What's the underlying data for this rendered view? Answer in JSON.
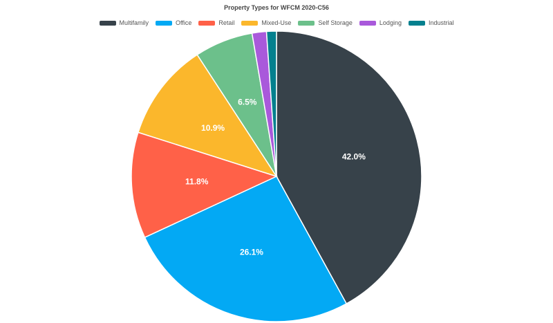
{
  "chart_data": {
    "type": "pie",
    "title": "Property Types for WFCM 2020-C56",
    "legend_position": "top",
    "slices": [
      {
        "name": "Multifamily",
        "value": 42.0,
        "label": "42.0%",
        "color": "#37424a"
      },
      {
        "name": "Office",
        "value": 26.1,
        "label": "26.1%",
        "color": "#03a9f4"
      },
      {
        "name": "Retail",
        "value": 11.8,
        "label": "11.8%",
        "color": "#ff6148"
      },
      {
        "name": "Mixed-Use",
        "value": 10.9,
        "label": "10.9%",
        "color": "#fbb72c"
      },
      {
        "name": "Self Storage",
        "value": 6.5,
        "label": "6.5%",
        "color": "#6cc08b"
      },
      {
        "name": "Lodging",
        "value": 1.6,
        "label": "",
        "color": "#a959db"
      },
      {
        "name": "Industrial",
        "value": 1.1,
        "label": "",
        "color": "#04808e"
      }
    ]
  }
}
